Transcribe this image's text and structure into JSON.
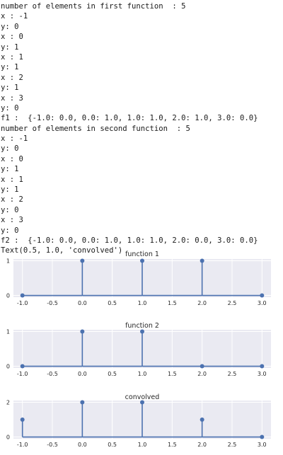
{
  "console_lines": [
    "number of elements in first function  : 5",
    "x : -1",
    "y: 0",
    "x : 0",
    "y: 1",
    "x : 1",
    "y: 1",
    "x : 2",
    "y: 1",
    "x : 3",
    "y: 0",
    "f1 :  {-1.0: 0.0, 0.0: 1.0, 1.0: 1.0, 2.0: 1.0, 3.0: 0.0}",
    "number of elements in second function  : 5",
    "x : -1",
    "y: 0",
    "x : 0",
    "y: 1",
    "x : 1",
    "y: 1",
    "x : 2",
    "y: 0",
    "x : 3",
    "y: 0",
    "f2 :  {-1.0: 0.0, 0.0: 1.0, 1.0: 1.0, 2.0: 0.0, 3.0: 0.0}",
    "Text(0.5, 1.0, 'convolved')"
  ],
  "colors": {
    "plot_background": "#eaeaf2",
    "grid": "#ffffff",
    "stem": "#4c72b0",
    "baseline": "#4c72b0",
    "text": "#262626"
  },
  "chart_data": [
    {
      "type": "stem",
      "title": "function 1",
      "x": [
        -1.0,
        0.0,
        1.0,
        2.0,
        3.0
      ],
      "y": [
        0,
        1,
        1,
        1,
        0
      ],
      "xlim": [
        -1.15,
        3.15
      ],
      "ylim": [
        -0.05,
        1.05
      ],
      "xticks": [
        "-1.0",
        "-0.5",
        "0.0",
        "0.5",
        "1.0",
        "1.5",
        "2.0",
        "2.5",
        "3.0"
      ],
      "xtick_values": [
        -1.0,
        -0.5,
        0.0,
        0.5,
        1.0,
        1.5,
        2.0,
        2.5,
        3.0
      ],
      "yticks": [
        "0",
        "1"
      ],
      "ytick_values": [
        0,
        1
      ],
      "grid": true
    },
    {
      "type": "stem",
      "title": "function 2",
      "x": [
        -1.0,
        0.0,
        1.0,
        2.0,
        3.0
      ],
      "y": [
        0,
        1,
        1,
        0,
        0
      ],
      "xlim": [
        -1.15,
        3.15
      ],
      "ylim": [
        -0.05,
        1.05
      ],
      "xticks": [
        "-1.0",
        "-0.5",
        "0.0",
        "0.5",
        "1.0",
        "1.5",
        "2.0",
        "2.5",
        "3.0"
      ],
      "xtick_values": [
        -1.0,
        -0.5,
        0.0,
        0.5,
        1.0,
        1.5,
        2.0,
        2.5,
        3.0
      ],
      "yticks": [
        "0",
        "1"
      ],
      "ytick_values": [
        0,
        1
      ],
      "grid": true
    },
    {
      "type": "stem",
      "title": "convolved",
      "x": [
        -1.0,
        0.0,
        1.0,
        2.0,
        3.0
      ],
      "y": [
        1,
        2,
        2,
        1,
        0
      ],
      "xlim": [
        -1.15,
        3.15
      ],
      "ylim": [
        -0.1,
        2.1
      ],
      "xticks": [
        "-1.0",
        "-0.5",
        "0.0",
        "0.5",
        "1.0",
        "1.5",
        "2.0",
        "2.5",
        "3.0"
      ],
      "xtick_values": [
        -1.0,
        -0.5,
        0.0,
        0.5,
        1.0,
        1.5,
        2.0,
        2.5,
        3.0
      ],
      "yticks": [
        "0",
        "2"
      ],
      "ytick_values": [
        0,
        2
      ],
      "grid": true
    }
  ]
}
